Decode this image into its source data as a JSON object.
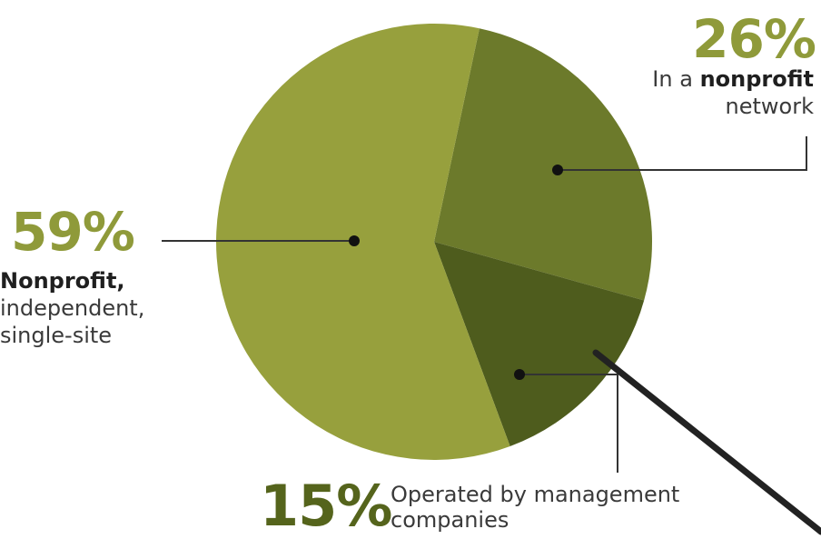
{
  "chart_data": {
    "type": "pie",
    "slices": [
      {
        "value": 59,
        "value_label": "59%",
        "label_lines": [
          {
            "parts": [
              {
                "text": "Nonprofit,",
                "bold": true
              }
            ]
          },
          {
            "parts": [
              {
                "text": "independent,",
                "bold": false
              }
            ]
          },
          {
            "parts": [
              {
                "text": "single-site",
                "bold": false
              }
            ]
          }
        ],
        "color": "#97a03d"
      },
      {
        "value": 26,
        "value_label": "26%",
        "label_lines": [
          {
            "parts": [
              {
                "text": "In a ",
                "bold": false
              },
              {
                "text": "nonprofit",
                "bold": true
              }
            ]
          },
          {
            "parts": [
              {
                "text": "network",
                "bold": false
              }
            ]
          }
        ],
        "color": "#6c7a2b"
      },
      {
        "value": 15,
        "value_label": "15%",
        "label_lines": [
          {
            "parts": [
              {
                "text": "Operated by management",
                "bold": false
              }
            ]
          },
          {
            "parts": [
              {
                "text": "companies",
                "bold": false
              }
            ]
          }
        ],
        "color": "#4e5c1d"
      }
    ],
    "legend": "none"
  },
  "colors": {
    "percent_text_light": "#8f9a3a",
    "percent_text_dark": "#55641c",
    "leader_line": "#333333",
    "pointer": "#222222"
  }
}
